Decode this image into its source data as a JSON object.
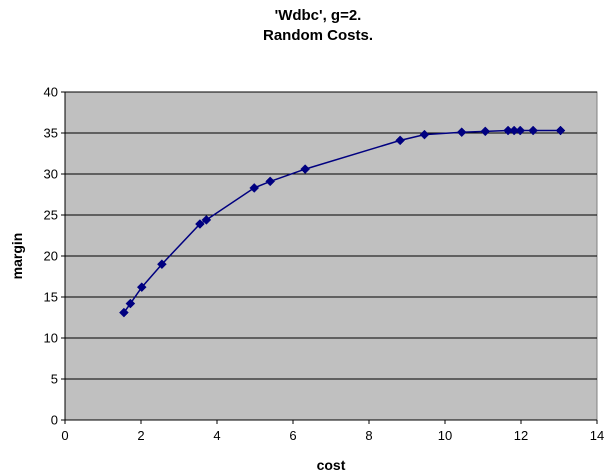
{
  "chart_data": {
    "type": "line",
    "title": "'Wdbc', g=2.",
    "subtitle": "Random Costs.",
    "xlabel": "cost",
    "ylabel": "margin",
    "xlim": [
      0,
      14
    ],
    "ylim": [
      0,
      40
    ],
    "xticks": [
      "0",
      "2",
      "4",
      "6",
      "8",
      "10",
      "12",
      "14"
    ],
    "yticks": [
      "0",
      "5",
      "10",
      "15",
      "20",
      "25",
      "30",
      "35",
      "40"
    ],
    "grid": "horizontal",
    "legend": "none",
    "colors": {
      "plot_background": "#c0c0c0",
      "series": "#000080",
      "gridline": "#000000"
    },
    "series": [
      {
        "x": [
          1.55,
          1.72,
          2.02,
          2.55,
          3.55,
          3.72,
          4.98,
          5.4,
          6.32,
          8.82,
          9.46,
          10.44,
          11.06,
          11.66,
          11.82,
          11.98,
          12.32,
          13.04
        ],
        "y": [
          13.1,
          14.2,
          16.2,
          19.0,
          23.9,
          24.4,
          28.3,
          29.1,
          30.6,
          34.1,
          34.8,
          35.1,
          35.2,
          35.3,
          35.3,
          35.3,
          35.3,
          35.3
        ]
      }
    ]
  }
}
